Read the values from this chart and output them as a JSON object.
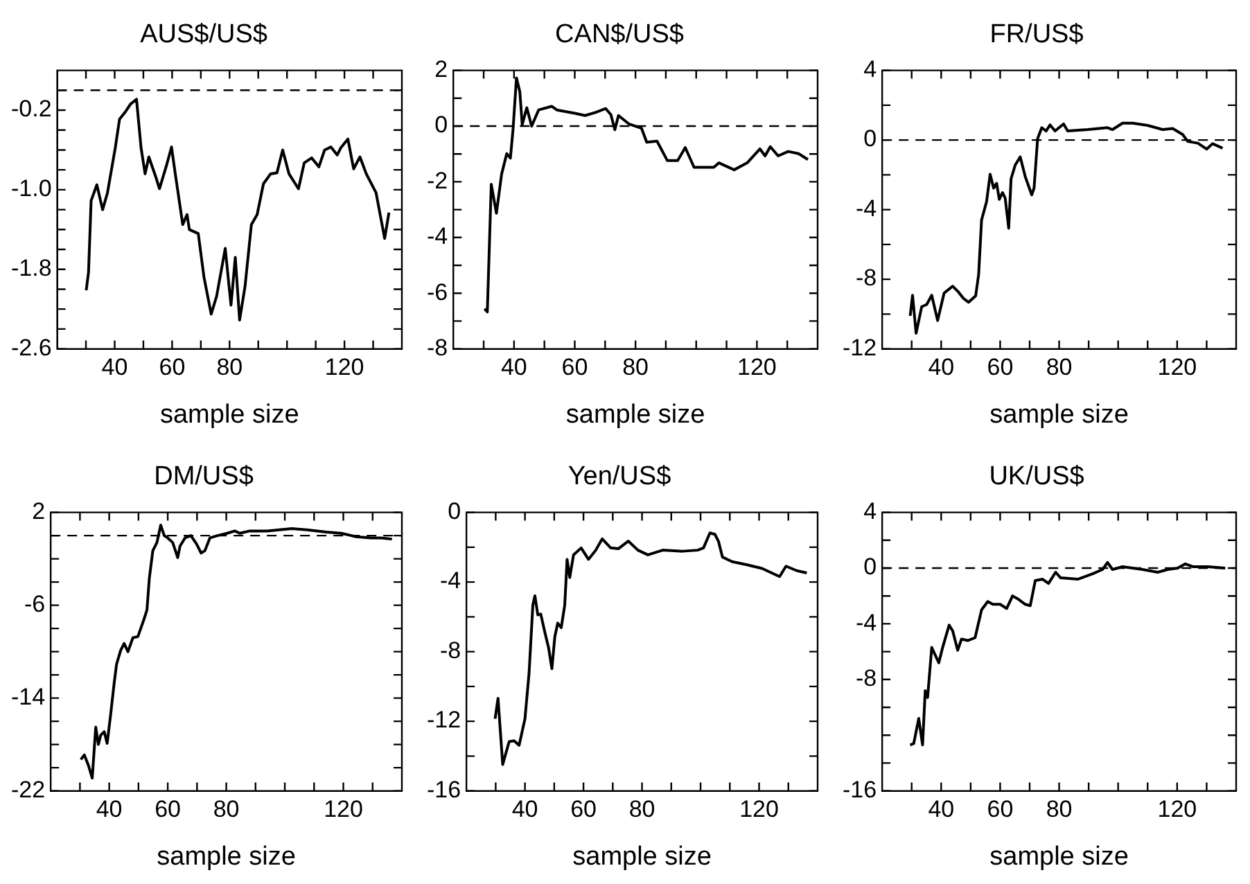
{
  "chart_data": [
    {
      "type": "line",
      "title": "AUS$/US$",
      "xlabel": "sample size",
      "color": "#000000",
      "marker": "none",
      "xlim": [
        20,
        140
      ],
      "ylim": [
        -2.6,
        0.2
      ],
      "xticks": [
        {
          "value": 30,
          "label": null
        },
        40,
        {
          "value": 50,
          "label": null
        },
        60,
        {
          "value": 70,
          "label": null
        },
        80,
        {
          "value": 90,
          "label": null
        },
        {
          "value": 100,
          "label": null
        },
        {
          "value": 110,
          "label": null
        },
        120,
        {
          "value": 130,
          "label": null
        }
      ],
      "yticks": [
        -2.6,
        {
          "value": -2.4,
          "label": null
        },
        {
          "value": -2.2,
          "label": null
        },
        {
          "value": -2.0,
          "label": null
        },
        -1.8,
        {
          "value": -1.6,
          "label": null
        },
        {
          "value": -1.4,
          "label": null
        },
        {
          "value": -1.2,
          "label": null
        },
        {
          "value": -1.0,
          "label": "-1.0"
        },
        {
          "value": -0.8,
          "label": null
        },
        {
          "value": -0.6,
          "label": null
        },
        {
          "value": -0.4,
          "label": null
        },
        -0.2,
        {
          "value": 0,
          "label": null
        }
      ],
      "ref_lines": [
        {
          "axis": "y",
          "value": 0,
          "line_style": "dashed"
        }
      ],
      "x": [
        30.1,
        30.9,
        31.8,
        33.8,
        35.8,
        37.5,
        40.2,
        41.7,
        43.9,
        45.5,
        47.6,
        49.2,
        50.6,
        51.9,
        54.3,
        55.6,
        58.2,
        59.8,
        61,
        63.7,
        65.2,
        66,
        69.1,
        71.1,
        73.6,
        75.5,
        78.5,
        80.5,
        82,
        83.5,
        85.4,
        87.6,
        89.6,
        91.8,
        94.3,
        96.5,
        98.5,
        100.7,
        104,
        106,
        108.6,
        111.1,
        113.1,
        115.3,
        117.5,
        118.7,
        121.2,
        123.2,
        125.4,
        127.6,
        131,
        134,
        135.5
      ],
      "values": [
        -2.01,
        -1.83,
        -1.11,
        -0.95,
        -1.2,
        -1.03,
        -0.58,
        -0.29,
        -0.21,
        -0.14,
        -0.09,
        -0.58,
        -0.84,
        -0.67,
        -0.87,
        -0.99,
        -0.74,
        -0.57,
        -0.82,
        -1.35,
        -1.25,
        -1.4,
        -1.44,
        -1.88,
        -2.25,
        -2.07,
        -1.59,
        -2.16,
        -1.68,
        -2.31,
        -1.97,
        -1.35,
        -1.25,
        -0.94,
        -0.84,
        -0.83,
        -0.6,
        -0.84,
        -0.99,
        -0.73,
        -0.68,
        -0.77,
        -0.6,
        -0.57,
        -0.65,
        -0.58,
        -0.49,
        -0.79,
        -0.67,
        -0.84,
        -1.03,
        -1.49,
        -1.23
      ]
    },
    {
      "type": "line",
      "title": "CAN$/US$",
      "xlabel": "sample size",
      "color": "#000000",
      "marker": "none",
      "xlim": [
        20,
        140
      ],
      "ylim": [
        -8,
        2
      ],
      "xticks": [
        {
          "value": 30,
          "label": null
        },
        40,
        {
          "value": 50,
          "label": null
        },
        60,
        {
          "value": 70,
          "label": null
        },
        80,
        {
          "value": 90,
          "label": null
        },
        {
          "value": 100,
          "label": null
        },
        {
          "value": 110,
          "label": null
        },
        120,
        {
          "value": 130,
          "label": null
        }
      ],
      "yticks": [
        -8,
        {
          "value": -7,
          "label": null
        },
        -6,
        {
          "value": -5,
          "label": null
        },
        -4,
        {
          "value": -3,
          "label": null
        },
        -2,
        {
          "value": -1,
          "label": null
        },
        0,
        {
          "value": 1,
          "label": null
        },
        2
      ],
      "ref_lines": [
        {
          "axis": "y",
          "value": 0,
          "line_style": "dashed"
        }
      ],
      "x": [
        30.3,
        31.2,
        32.5,
        34.2,
        35.9,
        37.6,
        38.8,
        39.7,
        40.8,
        41.9,
        42.7,
        44.2,
        45.8,
        48.1,
        52.4,
        54.1,
        60,
        63.4,
        66.8,
        70.2,
        71.9,
        73.2,
        74.4,
        77.8,
        82,
        83.7,
        87.1,
        90.5,
        93.9,
        96.4,
        99.3,
        105.8,
        107.5,
        112.5,
        116.8,
        121,
        122.7,
        124.4,
        127,
        130.3,
        133.7,
        136.8
      ],
      "values": [
        -6.56,
        -6.67,
        -2.09,
        -3.13,
        -1.73,
        -0.99,
        -1.15,
        -0.08,
        1.73,
        1.24,
        0.05,
        0.66,
        0,
        0.58,
        0.71,
        0.58,
        0.46,
        0.38,
        0.49,
        0.63,
        0.41,
        -0.13,
        0.38,
        0.08,
        -0.08,
        -0.58,
        -0.54,
        -1.24,
        -1.24,
        -0.77,
        -1.48,
        -1.48,
        -1.32,
        -1.57,
        -1.32,
        -0.82,
        -1.07,
        -0.74,
        -1.07,
        -0.91,
        -0.99,
        -1.2
      ]
    },
    {
      "type": "line",
      "title": "FR/US$",
      "xlabel": "sample size",
      "color": "#000000",
      "marker": "none",
      "xlim": [
        20,
        140
      ],
      "ylim": [
        -12,
        4
      ],
      "xticks": [
        {
          "value": 30,
          "label": null
        },
        40,
        {
          "value": 50,
          "label": null
        },
        60,
        {
          "value": 70,
          "label": null
        },
        80,
        {
          "value": 90,
          "label": null
        },
        {
          "value": 100,
          "label": null
        },
        {
          "value": 110,
          "label": null
        },
        120,
        {
          "value": 130,
          "label": null
        }
      ],
      "yticks": [
        -12,
        {
          "value": -10,
          "label": null
        },
        -8,
        {
          "value": -6,
          "label": null
        },
        -4,
        {
          "value": -2,
          "label": null
        },
        0,
        {
          "value": 2,
          "label": null
        },
        4
      ],
      "ref_lines": [
        {
          "axis": "y",
          "value": 0,
          "line_style": "dashed"
        }
      ],
      "x": [
        29.5,
        30.3,
        31.5,
        33.4,
        35.1,
        36.8,
        38.8,
        41,
        43.9,
        45.9,
        47.6,
        49.3,
        51.7,
        52.7,
        53.7,
        55.4,
        56.6,
        57.8,
        58.8,
        59.7,
        60.8,
        61.7,
        62.9,
        63.7,
        65.1,
        66.8,
        68.5,
        70.7,
        71.5,
        72.7,
        74.1,
        75.6,
        76.9,
        78.6,
        81.5,
        82.9,
        89.7,
        96.4,
        98.1,
        101.5,
        104.9,
        110,
        115.1,
        118.5,
        121.9,
        123.6,
        127,
        130,
        132,
        135.4
      ],
      "values": [
        -10.1,
        -8.92,
        -11.1,
        -9.58,
        -9.45,
        -8.92,
        -10.37,
        -8.79,
        -8.4,
        -8.74,
        -9.11,
        -9.32,
        -8.95,
        -7.74,
        -4.59,
        -3.54,
        -1.97,
        -2.76,
        -2.49,
        -3.41,
        -3.02,
        -3.33,
        -5.07,
        -2.23,
        -1.44,
        -0.97,
        -2.1,
        -3.15,
        -2.76,
        0.08,
        0.71,
        0.52,
        0.87,
        0.52,
        0.92,
        0.52,
        0.6,
        0.71,
        0.6,
        0.97,
        0.97,
        0.84,
        0.6,
        0.66,
        0.31,
        -0.08,
        -0.18,
        -0.52,
        -0.21,
        -0.47
      ]
    },
    {
      "type": "line",
      "title": "DM/US$",
      "xlabel": "sample size",
      "color": "#000000",
      "marker": "none",
      "xlim": [
        20,
        140
      ],
      "ylim": [
        -22,
        2
      ],
      "xticks": [
        {
          "value": 30,
          "label": null
        },
        40,
        {
          "value": 50,
          "label": null
        },
        60,
        {
          "value": 70,
          "label": null
        },
        80,
        {
          "value": 90,
          "label": null
        },
        {
          "value": 100,
          "label": null
        },
        {
          "value": 110,
          "label": null
        },
        120,
        {
          "value": 130,
          "label": null
        }
      ],
      "yticks": [
        -22,
        {
          "value": -20,
          "label": null
        },
        {
          "value": -18,
          "label": null
        },
        {
          "value": -16,
          "label": null
        },
        -14,
        {
          "value": -12,
          "label": null
        },
        {
          "value": -10,
          "label": null
        },
        {
          "value": -8,
          "label": null
        },
        -6,
        {
          "value": -4,
          "label": null
        },
        {
          "value": -2,
          "label": null
        },
        {
          "value": 0,
          "label": null
        },
        2
      ],
      "ref_lines": [
        {
          "axis": "y",
          "value": 0,
          "line_style": "dashed"
        }
      ],
      "x": [
        30.3,
        31.5,
        32.9,
        34.2,
        35.4,
        36.3,
        37.1,
        38.3,
        39.3,
        40.5,
        41.7,
        42.5,
        43.9,
        45.1,
        46.4,
        48.1,
        49.8,
        51.9,
        52.9,
        53.7,
        54.9,
        56.3,
        57.6,
        58.8,
        60,
        61.7,
        63.4,
        64.2,
        65.9,
        67.9,
        69.8,
        71.4,
        72.7,
        74.4,
        77,
        80.3,
        82.9,
        84.6,
        88,
        93.9,
        102.4,
        107.5,
        114.2,
        119.3,
        124.4,
        129.5,
        132.9,
        136.6
      ],
      "values": [
        -19.3,
        -18.9,
        -19.8,
        -20.9,
        -16.5,
        -18,
        -17.2,
        -16.9,
        -17.9,
        -15.4,
        -12.7,
        -11.1,
        -9.9,
        -9.3,
        -10,
        -8.8,
        -8.7,
        -7.2,
        -6.4,
        -3.7,
        -1.3,
        -0.6,
        0.9,
        0,
        -0.2,
        -0.6,
        -1.9,
        -0.9,
        -0.2,
        0,
        -0.7,
        -1.5,
        -1.3,
        -0.2,
        0,
        0.2,
        0.4,
        0.2,
        0.4,
        0.4,
        0.6,
        0.5,
        0.3,
        0.2,
        -0.1,
        -0.2,
        -0.2,
        -0.3
      ]
    },
    {
      "type": "line",
      "title": "Yen/US$",
      "xlabel": "sample size",
      "color": "#000000",
      "marker": "none",
      "xlim": [
        20,
        140
      ],
      "ylim": [
        -16,
        0
      ],
      "xticks": [
        {
          "value": 30,
          "label": null
        },
        40,
        {
          "value": 50,
          "label": null
        },
        60,
        {
          "value": 70,
          "label": null
        },
        80,
        {
          "value": 90,
          "label": null
        },
        {
          "value": 100,
          "label": null
        },
        {
          "value": 110,
          "label": null
        },
        120,
        {
          "value": 130,
          "label": null
        }
      ],
      "yticks": [
        -16,
        {
          "value": -14,
          "label": null
        },
        -12,
        {
          "value": -10,
          "label": null
        },
        -8,
        {
          "value": -6,
          "label": null
        },
        -4,
        {
          "value": -2,
          "label": null
        },
        0
      ],
      "x": [
        29.8,
        30.8,
        32.4,
        34.6,
        36.3,
        38,
        40,
        41.4,
        42.7,
        43.4,
        44.4,
        45.4,
        46.8,
        48.1,
        49.2,
        50.2,
        51.2,
        52.4,
        53.6,
        54.4,
        55.3,
        56.6,
        59.2,
        61.7,
        64.2,
        66.4,
        69.3,
        71.9,
        75.3,
        78.6,
        82,
        87.1,
        93.9,
        99,
        101,
        103.2,
        104.9,
        106.1,
        107.5,
        110.8,
        115.9,
        121,
        127,
        129.2,
        132.9,
        136.3
      ],
      "values": [
        -11.86,
        -10.68,
        -14.48,
        -13.17,
        -13.12,
        -13.38,
        -11.86,
        -9.24,
        -5.32,
        -4.79,
        -5.89,
        -5.84,
        -6.89,
        -7.8,
        -8.98,
        -7.15,
        -6.36,
        -6.62,
        -5.32,
        -2.7,
        -3.74,
        -2.44,
        -2.04,
        -2.7,
        -2.17,
        -1.52,
        -2.04,
        -2.09,
        -1.65,
        -2.17,
        -2.44,
        -2.17,
        -2.23,
        -2.17,
        -2.04,
        -1.18,
        -1.26,
        -1.65,
        -2.57,
        -2.83,
        -3.01,
        -3.22,
        -3.69,
        -3.09,
        -3.35,
        -3.48
      ]
    },
    {
      "type": "line",
      "title": "UK/US$",
      "xlabel": "sample size",
      "color": "#000000",
      "marker": "none",
      "xlim": [
        20,
        140
      ],
      "ylim": [
        -16,
        4
      ],
      "xticks": [
        {
          "value": 30,
          "label": null
        },
        40,
        {
          "value": 50,
          "label": null
        },
        60,
        {
          "value": 70,
          "label": null
        },
        80,
        {
          "value": 90,
          "label": null
        },
        {
          "value": 100,
          "label": null
        },
        {
          "value": 110,
          "label": null
        },
        120,
        {
          "value": 130,
          "label": null
        }
      ],
      "yticks": [
        -16,
        {
          "value": -14,
          "label": null
        },
        {
          "value": -12,
          "label": null
        },
        {
          "value": -10,
          "label": null
        },
        -8,
        {
          "value": -6,
          "label": null
        },
        -4,
        {
          "value": -2,
          "label": null
        },
        0,
        {
          "value": 2,
          "label": null
        },
        4
      ],
      "ref_lines": [
        {
          "axis": "y",
          "value": 0,
          "line_style": "dashed"
        }
      ],
      "x": [
        29.5,
        30.7,
        32.4,
        33.7,
        34.6,
        35.4,
        36.8,
        39.2,
        40.5,
        42.7,
        43.9,
        45.6,
        46.9,
        49,
        51.5,
        53.7,
        55.8,
        57.5,
        60,
        62.2,
        64.2,
        65.9,
        68.5,
        70.2,
        71.9,
        74.4,
        76.4,
        78.8,
        80.5,
        86.3,
        91.4,
        94.7,
        96.4,
        98.1,
        101.5,
        108.3,
        113.4,
        116.8,
        120.2,
        122.7,
        125.3,
        130.3,
        136.3
      ],
      "values": [
        -12.7,
        -12.6,
        -10.8,
        -12.7,
        -8.8,
        -9.3,
        -5.7,
        -6.8,
        -5.7,
        -4.1,
        -4.5,
        -5.9,
        -5.1,
        -5.2,
        -5,
        -3,
        -2.4,
        -2.6,
        -2.6,
        -2.9,
        -2,
        -2.2,
        -2.6,
        -2.7,
        -0.9,
        -0.8,
        -1.1,
        -0.3,
        -0.7,
        -0.8,
        -0.4,
        -0.1,
        0.4,
        -0.1,
        0.1,
        -0.1,
        -0.3,
        -0.1,
        0,
        0.3,
        0.1,
        0.1,
        0
      ]
    }
  ]
}
